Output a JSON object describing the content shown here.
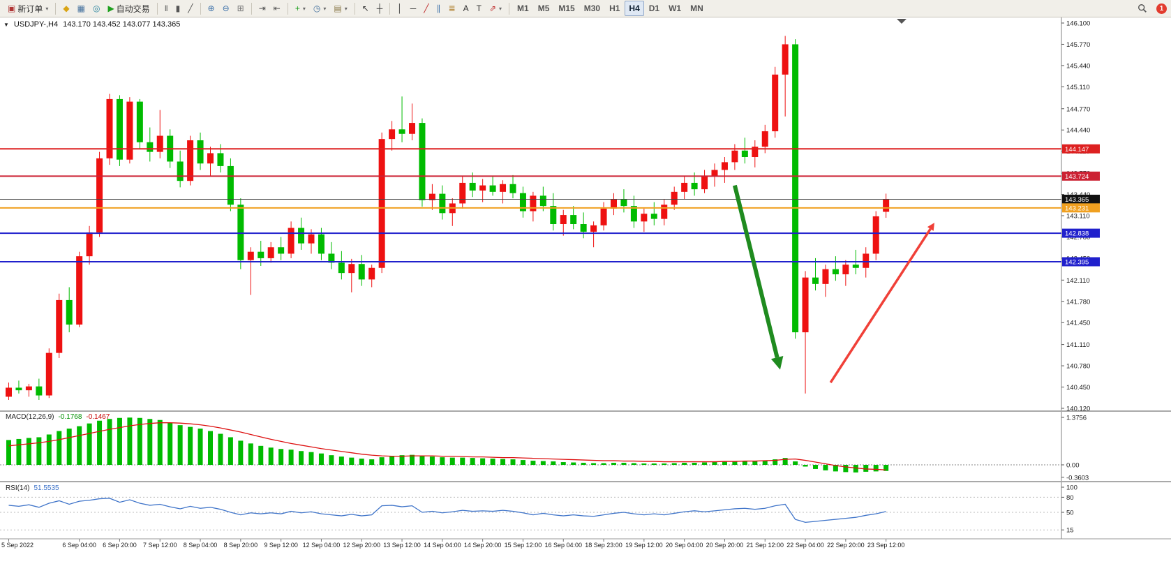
{
  "toolbar": {
    "active_timeframe": "H4",
    "notification_count": "1",
    "items": [
      {
        "name": "new-order-button",
        "glyph": "▣",
        "color": "#b03535",
        "label": "新订单",
        "dropdown": true
      },
      {
        "sep": true
      },
      {
        "name": "market-watch-button",
        "glyph": "◆",
        "color": "#d9a414"
      },
      {
        "name": "data-window-button",
        "glyph": "▦",
        "color": "#46729e"
      },
      {
        "name": "navigator-button",
        "glyph": "◎",
        "color": "#2e86a0"
      },
      {
        "name": "autotrading-button",
        "glyph": "▶",
        "color": "#1ea01e",
        "label": "自动交易"
      },
      {
        "sep": true
      },
      {
        "name": "bar-chart-button",
        "glyph": "‖",
        "color": "#555"
      },
      {
        "name": "candlestick-chart-button",
        "glyph": "▮",
        "color": "#555"
      },
      {
        "name": "line-chart-button",
        "glyph": "╱",
        "color": "#555"
      },
      {
        "sep": true
      },
      {
        "name": "zoom-in-button",
        "glyph": "⊕",
        "color": "#3a6fa8"
      },
      {
        "name": "zoom-out-button",
        "glyph": "⊖",
        "color": "#3a6fa8"
      },
      {
        "name": "grid-button",
        "glyph": "⊞",
        "color": "#777"
      },
      {
        "sep": true
      },
      {
        "name": "auto-scroll-button",
        "glyph": "⇥",
        "color": "#555"
      },
      {
        "name": "chart-shift-button",
        "glyph": "⇤",
        "color": "#555"
      },
      {
        "sep": true
      },
      {
        "name": "indicators-button",
        "glyph": "+",
        "color": "#1ea01e",
        "dropdown": true
      },
      {
        "name": "periods-button",
        "glyph": "◷",
        "color": "#46729e",
        "dropdown": true
      },
      {
        "name": "templates-button",
        "glyph": "▤",
        "color": "#8a7a4a",
        "dropdown": true
      },
      {
        "sep": true
      },
      {
        "name": "cursor-button",
        "glyph": "↖",
        "color": "#333"
      },
      {
        "name": "crosshair-button",
        "glyph": "┼",
        "color": "#333"
      },
      {
        "sep": true
      },
      {
        "name": "vertical-line-button",
        "glyph": "│",
        "color": "#333"
      },
      {
        "name": "horizontal-line-button",
        "glyph": "─",
        "color": "#333"
      },
      {
        "name": "trendline-button",
        "glyph": "╱",
        "color": "#c03030"
      },
      {
        "name": "channel-button",
        "glyph": "∥",
        "color": "#3a6fa8"
      },
      {
        "name": "fibonacci-button",
        "glyph": "≣",
        "color": "#b08030"
      },
      {
        "name": "text-button",
        "glyph": "A",
        "color": "#333"
      },
      {
        "name": "label-button",
        "glyph": "T",
        "color": "#333"
      },
      {
        "name": "shapes-button",
        "glyph": "⇗",
        "color": "#c03030",
        "dropdown": true
      },
      {
        "sep": true
      },
      {
        "tf": true,
        "label": "M1"
      },
      {
        "tf": true,
        "label": "M5"
      },
      {
        "tf": true,
        "label": "M15"
      },
      {
        "tf": true,
        "label": "M30"
      },
      {
        "tf": true,
        "label": "H1"
      },
      {
        "tf": true,
        "label": "H4"
      },
      {
        "tf": true,
        "label": "D1"
      },
      {
        "tf": true,
        "label": "W1"
      },
      {
        "tf": true,
        "label": "MN"
      }
    ]
  },
  "chart": {
    "symbol_period": "USDJPY-,H4",
    "ohlc_values": "143.170 143.452 143.077 143.365",
    "macd_name": "MACD(12,26,9)",
    "macd_value": "-0.1768",
    "macd_signal": "-0.1467",
    "rsi_name": "RSI(14)",
    "rsi_value": "51.5535"
  },
  "chart_data": [
    {
      "type": "candlestick",
      "title": "USDJPY-,H4",
      "symbol": "USDJPY-",
      "period": "H4",
      "ohlc_current": {
        "open": 143.17,
        "high": 143.452,
        "low": 143.077,
        "close": 143.365
      },
      "ylim": [
        140.12,
        146.1
      ],
      "bull_color": "#ee1111",
      "bear_color": "#00bb00",
      "y_ticks": [
        "146.100",
        "145.770",
        "145.440",
        "145.110",
        "144.770",
        "144.440",
        "144.110",
        "143.770",
        "143.440",
        "143.110",
        "142.780",
        "142.450",
        "142.110",
        "141.780",
        "141.450",
        "141.110",
        "140.780",
        "140.450",
        "140.120"
      ],
      "x_tick_indices": [
        0,
        7,
        11,
        15,
        19,
        23,
        27,
        31,
        35,
        39,
        43,
        47,
        51,
        55,
        59,
        63,
        67,
        71,
        75,
        79,
        83,
        87
      ],
      "x_tick_labels": [
        "5 Sep 2022",
        "6 Sep 04:00",
        "6 Sep 20:00",
        "7 Sep 12:00",
        "8 Sep 04:00",
        "8 Sep 20:00",
        "9 Sep 12:00",
        "12 Sep 04:00",
        "12 Sep 20:00",
        "13 Sep 12:00",
        "14 Sep 04:00",
        "14 Sep 20:00",
        "15 Sep 12:00",
        "16 Sep 04:00",
        "18 Sep 23:00",
        "19 Sep 12:00",
        "20 Sep 04:00",
        "20 Sep 20:00",
        "21 Sep 12:00",
        "22 Sep 04:00",
        "22 Sep 20:00",
        "23 Sep 12:00"
      ],
      "hlines": [
        {
          "price": 144.147,
          "label": "144.147",
          "color": "#dd2020",
          "badge": "#dd2020",
          "width": 2
        },
        {
          "price": 143.724,
          "label": "143.724",
          "color": "#cc2233",
          "badge": "#cc2233",
          "width": 2
        },
        {
          "price": 143.365,
          "label": "143.365",
          "color": "#444444",
          "badge": "#111111",
          "width": 1
        },
        {
          "price": 143.231,
          "label": "143.231",
          "color": "#f0a020",
          "badge": "#f0a020",
          "width": 2
        },
        {
          "price": 142.838,
          "label": "142.838",
          "color": "#2020cc",
          "badge": "#2020cc",
          "width": 2
        },
        {
          "price": 142.395,
          "label": "142.395",
          "color": "#2020cc",
          "badge": "#2020cc",
          "width": 2
        }
      ],
      "annotations": [
        {
          "type": "arrow",
          "name": "down-trend-arrow",
          "from_i": 72,
          "from_p": 143.58,
          "to_i": 76.5,
          "to_p": 140.72,
          "color": "#1f8b1f",
          "width": 6
        },
        {
          "type": "arrow",
          "name": "up-trend-arrow",
          "from_i": 81.5,
          "from_p": 140.52,
          "to_i": 91.8,
          "to_p": 143.0,
          "color": "#f04038",
          "width": 3.5
        }
      ],
      "candles": [
        [
          140.3,
          140.52,
          140.25,
          140.44
        ],
        [
          140.44,
          140.55,
          140.35,
          140.4
        ],
        [
          140.4,
          140.5,
          140.3,
          140.46
        ],
        [
          140.46,
          140.58,
          140.25,
          140.32
        ],
        [
          140.32,
          141.05,
          140.28,
          140.98
        ],
        [
          140.98,
          141.9,
          140.9,
          141.8
        ],
        [
          141.8,
          142.0,
          141.3,
          141.42
        ],
        [
          141.42,
          142.55,
          141.38,
          142.48
        ],
        [
          142.48,
          142.95,
          142.35,
          142.85
        ],
        [
          142.85,
          144.1,
          142.78,
          144.0
        ],
        [
          144.0,
          145.0,
          143.9,
          144.92
        ],
        [
          144.92,
          144.98,
          143.88,
          143.98
        ],
        [
          143.98,
          144.95,
          143.92,
          144.88
        ],
        [
          144.88,
          144.92,
          144.15,
          144.25
        ],
        [
          144.25,
          144.48,
          143.95,
          144.1
        ],
        [
          144.1,
          144.75,
          144.0,
          144.35
        ],
        [
          144.35,
          144.45,
          143.85,
          143.95
        ],
        [
          143.95,
          144.12,
          143.55,
          143.65
        ],
        [
          143.65,
          144.35,
          143.58,
          144.28
        ],
        [
          144.28,
          144.4,
          143.82,
          143.92
        ],
        [
          143.92,
          144.18,
          143.72,
          144.08
        ],
        [
          144.08,
          144.22,
          143.78,
          143.88
        ],
        [
          143.88,
          144.0,
          143.18,
          143.28
        ],
        [
          143.28,
          143.38,
          142.28,
          142.42
        ],
        [
          142.42,
          142.62,
          141.88,
          142.55
        ],
        [
          142.55,
          142.72,
          142.33,
          142.45
        ],
        [
          142.45,
          142.7,
          142.38,
          142.62
        ],
        [
          142.62,
          142.78,
          142.42,
          142.52
        ],
        [
          142.52,
          143.02,
          142.45,
          142.92
        ],
        [
          142.92,
          143.08,
          142.58,
          142.68
        ],
        [
          142.68,
          142.9,
          142.52,
          142.82
        ],
        [
          142.82,
          142.92,
          142.42,
          142.52
        ],
        [
          142.52,
          142.7,
          142.28,
          142.38
        ],
        [
          142.38,
          142.56,
          142.12,
          142.22
        ],
        [
          142.22,
          142.44,
          141.92,
          142.36
        ],
        [
          142.36,
          142.5,
          142.02,
          142.12
        ],
        [
          142.12,
          142.35,
          142.0,
          142.3
        ],
        [
          142.3,
          144.4,
          142.22,
          144.3
        ],
        [
          144.3,
          144.58,
          144.12,
          144.45
        ],
        [
          144.45,
          144.96,
          144.25,
          144.38
        ],
        [
          144.38,
          144.85,
          144.28,
          144.55
        ],
        [
          144.55,
          144.62,
          143.25,
          143.35
        ],
        [
          143.35,
          143.6,
          143.2,
          143.45
        ],
        [
          143.45,
          143.58,
          143.05,
          143.15
        ],
        [
          143.15,
          143.38,
          142.95,
          143.3
        ],
        [
          143.3,
          143.72,
          143.22,
          143.62
        ],
        [
          143.62,
          143.78,
          143.4,
          143.5
        ],
        [
          143.5,
          143.68,
          143.32,
          143.58
        ],
        [
          143.58,
          143.72,
          143.42,
          143.48
        ],
        [
          143.48,
          143.66,
          143.3,
          143.6
        ],
        [
          143.6,
          143.74,
          143.38,
          143.46
        ],
        [
          143.46,
          143.56,
          143.08,
          143.18
        ],
        [
          143.18,
          143.48,
          143.02,
          143.42
        ],
        [
          143.42,
          143.56,
          143.18,
          143.26
        ],
        [
          143.26,
          143.46,
          142.88,
          142.98
        ],
        [
          142.98,
          143.2,
          142.8,
          143.12
        ],
        [
          143.12,
          143.26,
          142.9,
          142.98
        ],
        [
          142.98,
          143.16,
          142.76,
          142.86
        ],
        [
          142.86,
          143.02,
          142.62,
          142.96
        ],
        [
          142.96,
          143.32,
          142.88,
          143.22
        ],
        [
          143.22,
          143.46,
          143.12,
          143.36
        ],
        [
          143.36,
          143.52,
          143.16,
          143.26
        ],
        [
          143.26,
          143.42,
          142.92,
          143.02
        ],
        [
          143.02,
          143.22,
          142.86,
          143.14
        ],
        [
          143.14,
          143.32,
          142.96,
          143.06
        ],
        [
          143.06,
          143.36,
          142.96,
          143.28
        ],
        [
          143.28,
          143.56,
          143.2,
          143.48
        ],
        [
          143.48,
          143.72,
          143.36,
          143.62
        ],
        [
          143.62,
          143.78,
          143.42,
          143.52
        ],
        [
          143.52,
          143.82,
          143.46,
          143.72
        ],
        [
          143.72,
          143.92,
          143.56,
          143.82
        ],
        [
          143.82,
          144.02,
          143.62,
          143.94
        ],
        [
          143.94,
          144.22,
          143.82,
          144.12
        ],
        [
          144.12,
          144.32,
          143.92,
          144.02
        ],
        [
          144.02,
          144.28,
          143.86,
          144.18
        ],
        [
          144.18,
          144.52,
          144.08,
          144.42
        ],
        [
          144.42,
          145.42,
          144.32,
          145.3
        ],
        [
          145.3,
          145.9,
          144.65,
          145.77
        ],
        [
          145.77,
          145.85,
          141.2,
          141.3
        ],
        [
          141.3,
          142.25,
          140.35,
          142.15
        ],
        [
          142.15,
          142.45,
          141.95,
          142.05
        ],
        [
          142.05,
          142.35,
          141.85,
          142.28
        ],
        [
          142.28,
          142.48,
          142.1,
          142.2
        ],
        [
          142.2,
          142.42,
          142.02,
          142.35
        ],
        [
          142.35,
          142.58,
          142.2,
          142.3
        ],
        [
          142.3,
          142.62,
          142.15,
          142.52
        ],
        [
          142.52,
          143.18,
          142.42,
          143.1
        ],
        [
          143.17,
          143.452,
          143.077,
          143.365
        ]
      ]
    },
    {
      "type": "bar",
      "name": "MACD(12,26,9)",
      "values_label": "-0.1768 -0.1467",
      "ylim": [
        -0.3603,
        1.3756
      ],
      "y_ticks": [
        "1.3756",
        "0.00",
        "-0.3603"
      ],
      "histogram_color": "#00bb00",
      "signal_color": "#dd1111",
      "histogram": [
        0.72,
        0.75,
        0.78,
        0.8,
        0.88,
        0.98,
        1.05,
        1.12,
        1.2,
        1.28,
        1.33,
        1.36,
        1.37,
        1.36,
        1.33,
        1.3,
        1.22,
        1.15,
        1.1,
        1.05,
        0.98,
        0.9,
        0.8,
        0.7,
        0.62,
        0.55,
        0.5,
        0.46,
        0.44,
        0.4,
        0.37,
        0.33,
        0.28,
        0.24,
        0.21,
        0.18,
        0.16,
        0.22,
        0.26,
        0.28,
        0.29,
        0.26,
        0.24,
        0.22,
        0.21,
        0.21,
        0.2,
        0.19,
        0.18,
        0.17,
        0.16,
        0.14,
        0.12,
        0.11,
        0.1,
        0.08,
        0.07,
        0.06,
        0.05,
        0.05,
        0.06,
        0.06,
        0.05,
        0.04,
        0.04,
        0.04,
        0.05,
        0.06,
        0.06,
        0.07,
        0.08,
        0.09,
        0.1,
        0.11,
        0.11,
        0.12,
        0.16,
        0.2,
        0.1,
        -0.05,
        -0.12,
        -0.16,
        -0.19,
        -0.21,
        -0.22,
        -0.2,
        -0.19,
        -0.1768
      ],
      "signal": [
        0.55,
        0.58,
        0.61,
        0.64,
        0.68,
        0.73,
        0.79,
        0.85,
        0.91,
        0.97,
        1.03,
        1.08,
        1.13,
        1.17,
        1.2,
        1.22,
        1.22,
        1.21,
        1.19,
        1.16,
        1.12,
        1.07,
        1.01,
        0.95,
        0.88,
        0.81,
        0.74,
        0.68,
        0.62,
        0.57,
        0.52,
        0.47,
        0.43,
        0.39,
        0.35,
        0.31,
        0.28,
        0.26,
        0.25,
        0.25,
        0.26,
        0.26,
        0.26,
        0.25,
        0.25,
        0.24,
        0.23,
        0.23,
        0.22,
        0.21,
        0.21,
        0.2,
        0.19,
        0.18,
        0.17,
        0.16,
        0.15,
        0.14,
        0.13,
        0.12,
        0.12,
        0.11,
        0.11,
        0.1,
        0.1,
        0.09,
        0.09,
        0.09,
        0.09,
        0.09,
        0.09,
        0.1,
        0.1,
        0.11,
        0.11,
        0.12,
        0.13,
        0.16,
        0.17,
        0.13,
        0.08,
        0.03,
        -0.02,
        -0.06,
        -0.09,
        -0.12,
        -0.13,
        -0.1467
      ]
    },
    {
      "type": "line",
      "name": "RSI(14)",
      "value": "51.5535",
      "ylim": [
        0,
        100
      ],
      "levels": [
        80,
        50,
        15
      ],
      "y_ticks": [
        "100",
        "80",
        "50",
        "15"
      ],
      "line_color": "#3f74c9",
      "values": [
        64,
        62,
        65,
        60,
        68,
        73,
        66,
        72,
        74,
        77,
        78,
        70,
        75,
        68,
        64,
        66,
        61,
        57,
        62,
        58,
        60,
        56,
        50,
        45,
        49,
        47,
        49,
        47,
        52,
        49,
        51,
        47,
        45,
        43,
        46,
        43,
        45,
        63,
        64,
        61,
        63,
        50,
        52,
        49,
        51,
        54,
        52,
        53,
        52,
        54,
        52,
        49,
        45,
        48,
        45,
        43,
        45,
        43,
        42,
        45,
        48,
        50,
        47,
        45,
        47,
        45,
        48,
        51,
        53,
        51,
        53,
        55,
        57,
        58,
        56,
        58,
        63,
        66,
        36,
        30,
        32,
        34,
        36,
        38,
        40,
        44,
        47,
        51.55
      ]
    }
  ]
}
